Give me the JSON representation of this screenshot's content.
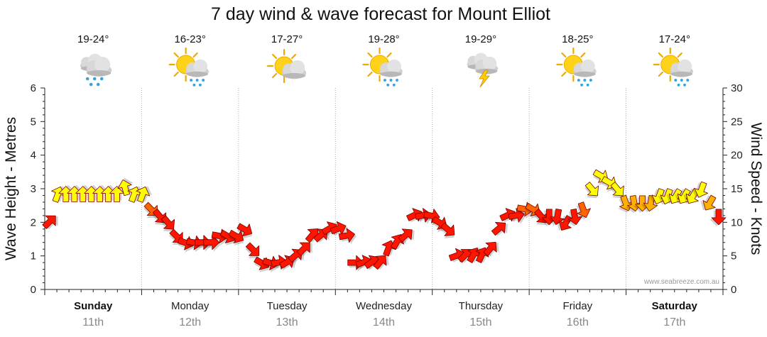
{
  "chart_data": {
    "type": "line",
    "title": "7 day wind & wave forecast for Mount Elliot",
    "ylabel": "Wave Height - Metres",
    "y2label": "Wind Speed - Knots",
    "ylim": [
      0,
      6
    ],
    "y2lim": [
      0,
      30
    ],
    "yticks": [
      "0",
      "1",
      "2",
      "3",
      "4",
      "5",
      "6"
    ],
    "y2ticks": [
      "0",
      "5",
      "10",
      "15",
      "20",
      "25",
      "30"
    ],
    "credit": "www.seabreeze.com.au",
    "colors": {
      "wind_low": "#ff1500",
      "wind_high": "#ffff00",
      "outline": "#7a0000",
      "grid": "#aaaaaa"
    },
    "days": [
      {
        "name": "Sunday",
        "date": "11th",
        "temp": "19-24°",
        "icon": "rain-cloud-icon",
        "bold": true
      },
      {
        "name": "Monday",
        "date": "12th",
        "temp": "16-23°",
        "icon": "sun-cloud-rain-icon",
        "bold": false
      },
      {
        "name": "Tuesday",
        "date": "13th",
        "temp": "17-27°",
        "icon": "sun-cloud-icon",
        "bold": false
      },
      {
        "name": "Wednesday",
        "date": "14th",
        "temp": "19-28°",
        "icon": "sun-cloud-rain-icon",
        "bold": false
      },
      {
        "name": "Thursday",
        "date": "15th",
        "temp": "19-29°",
        "icon": "storm-cloud-icon",
        "bold": false
      },
      {
        "name": "Friday",
        "date": "16th",
        "temp": "18-25°",
        "icon": "sun-cloud-rain-icon",
        "bold": false
      },
      {
        "name": "Saturday",
        "date": "17th",
        "temp": "17-24°",
        "icon": "sun-cloud-rain-icon",
        "bold": true
      }
    ],
    "series": [
      {
        "name": "Wind speed (knots)",
        "unit": "knots",
        "values": [
          10,
          14,
          14,
          14,
          14,
          14,
          14,
          14,
          14,
          15,
          14,
          14,
          12,
          11,
          10,
          8,
          7,
          7,
          7,
          7,
          8,
          8,
          8,
          9,
          6,
          4,
          4,
          4,
          4,
          5,
          6,
          8,
          8,
          9,
          9,
          8,
          4,
          4,
          4,
          4,
          6,
          7,
          8,
          11,
          11,
          11,
          10,
          9,
          5,
          5,
          5,
          5,
          6,
          9,
          11,
          11,
          12,
          12,
          11,
          11,
          11,
          10,
          11,
          12,
          15,
          17,
          16,
          15,
          13,
          13,
          13,
          13,
          14,
          14,
          14,
          14,
          14,
          15,
          13,
          11
        ],
        "directions_deg": [
          225,
          200,
          180,
          180,
          180,
          180,
          180,
          180,
          180,
          165,
          200,
          200,
          315,
          320,
          320,
          315,
          290,
          280,
          270,
          270,
          280,
          300,
          300,
          300,
          315,
          300,
          285,
          260,
          240,
          230,
          225,
          220,
          230,
          240,
          250,
          260,
          270,
          250,
          235,
          220,
          200,
          210,
          230,
          245,
          260,
          280,
          300,
          310,
          250,
          225,
          210,
          205,
          220,
          230,
          245,
          260,
          280,
          300,
          320,
          360,
          10,
          30,
          350,
          340,
          320,
          300,
          300,
          320,
          340,
          350,
          360,
          10,
          20,
          20,
          30,
          30,
          30,
          20,
          30,
          0
        ]
      }
    ]
  }
}
